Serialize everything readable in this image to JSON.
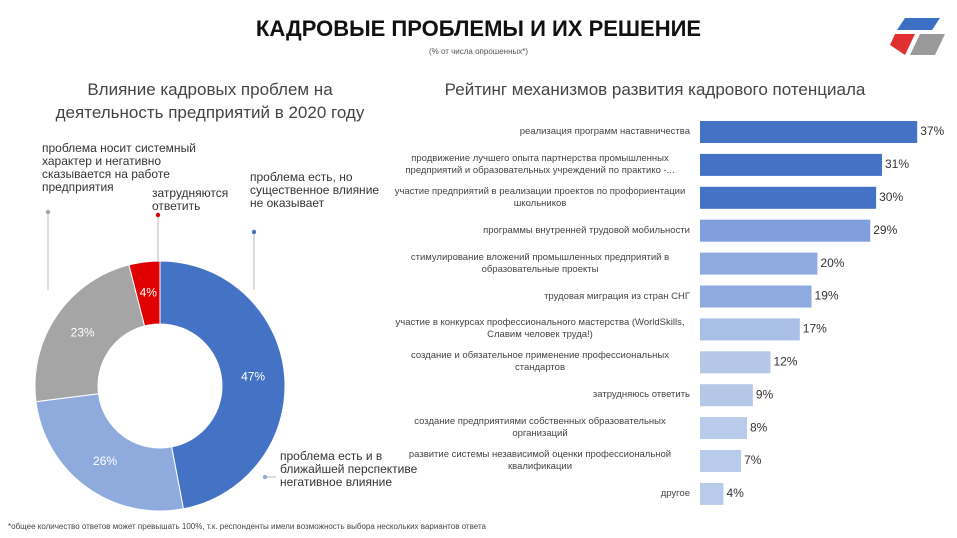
{
  "title": "КАДРОВЫЕ ПРОБЛЕМЫ И ИХ РЕШЕНИЕ",
  "subtitle": "(% от числа опрошенных*)",
  "footnote": "*общее количество ответов  может превышать 100%, т.к. респонденты имели возможность выбора нескольких вариантов ответа",
  "chart_data": [
    {
      "type": "donut",
      "title": "Влияние кадровых проблем на деятельность предприятий в 2020 году",
      "categories": [
        "проблема есть, но существенное влияние не оказывает",
        "проблема есть и в ближайшей перспективе негативное влияние",
        "проблема носит системный характер и негативно сказывается на работе предприятия",
        "затрудняются ответить"
      ],
      "values": [
        47,
        26,
        23,
        4
      ],
      "value_labels": [
        "47%",
        "26%",
        "23%",
        "4%"
      ],
      "colors": [
        "#4472c4",
        "#8faadc",
        "#a5a5a5",
        "#e00000"
      ]
    },
    {
      "type": "hbar",
      "title": "Рейтинг механизмов развития кадрового потенциала",
      "categories": [
        "реализация программ  наставничества",
        "продвижение лучшего опыта партнерства промышленных предприятий и образовательных учреждений по практико -...",
        "участие предприятий в реализации  проектов по профориентации школьников",
        "программы  внутренней трудовой мобильности",
        "стимулирование  вложений промышленных предприятий в образовательные проекты",
        "трудовая миграция  из стран СНГ",
        "участие в конкурсах профессионального  мастерства (WorldSkills, Славим человек труда!)",
        "создание и обязательное применение профессиональных стандартов",
        "затрудняюсь ответить",
        "создание предприятиями  собственных образовательных организаций",
        "развитие системы независимой оценки профессиональной квалификации",
        "другое"
      ],
      "values": [
        37,
        31,
        30,
        29,
        20,
        19,
        17,
        12,
        9,
        8,
        7,
        4
      ],
      "value_labels": [
        "37%",
        "31%",
        "30%",
        "29%",
        "20%",
        "19%",
        "17%",
        "12%",
        "9%",
        "8%",
        "7%",
        "4%"
      ],
      "colors": [
        "#4472c4",
        "#4472c4",
        "#4472c4",
        "#7f9edb",
        "#8eaadf",
        "#8eaadf",
        "#a9bfe6",
        "#b4c7e7",
        "#b4c7e7",
        "#b9cbea",
        "#b9cbea",
        "#b9cbea"
      ]
    }
  ]
}
